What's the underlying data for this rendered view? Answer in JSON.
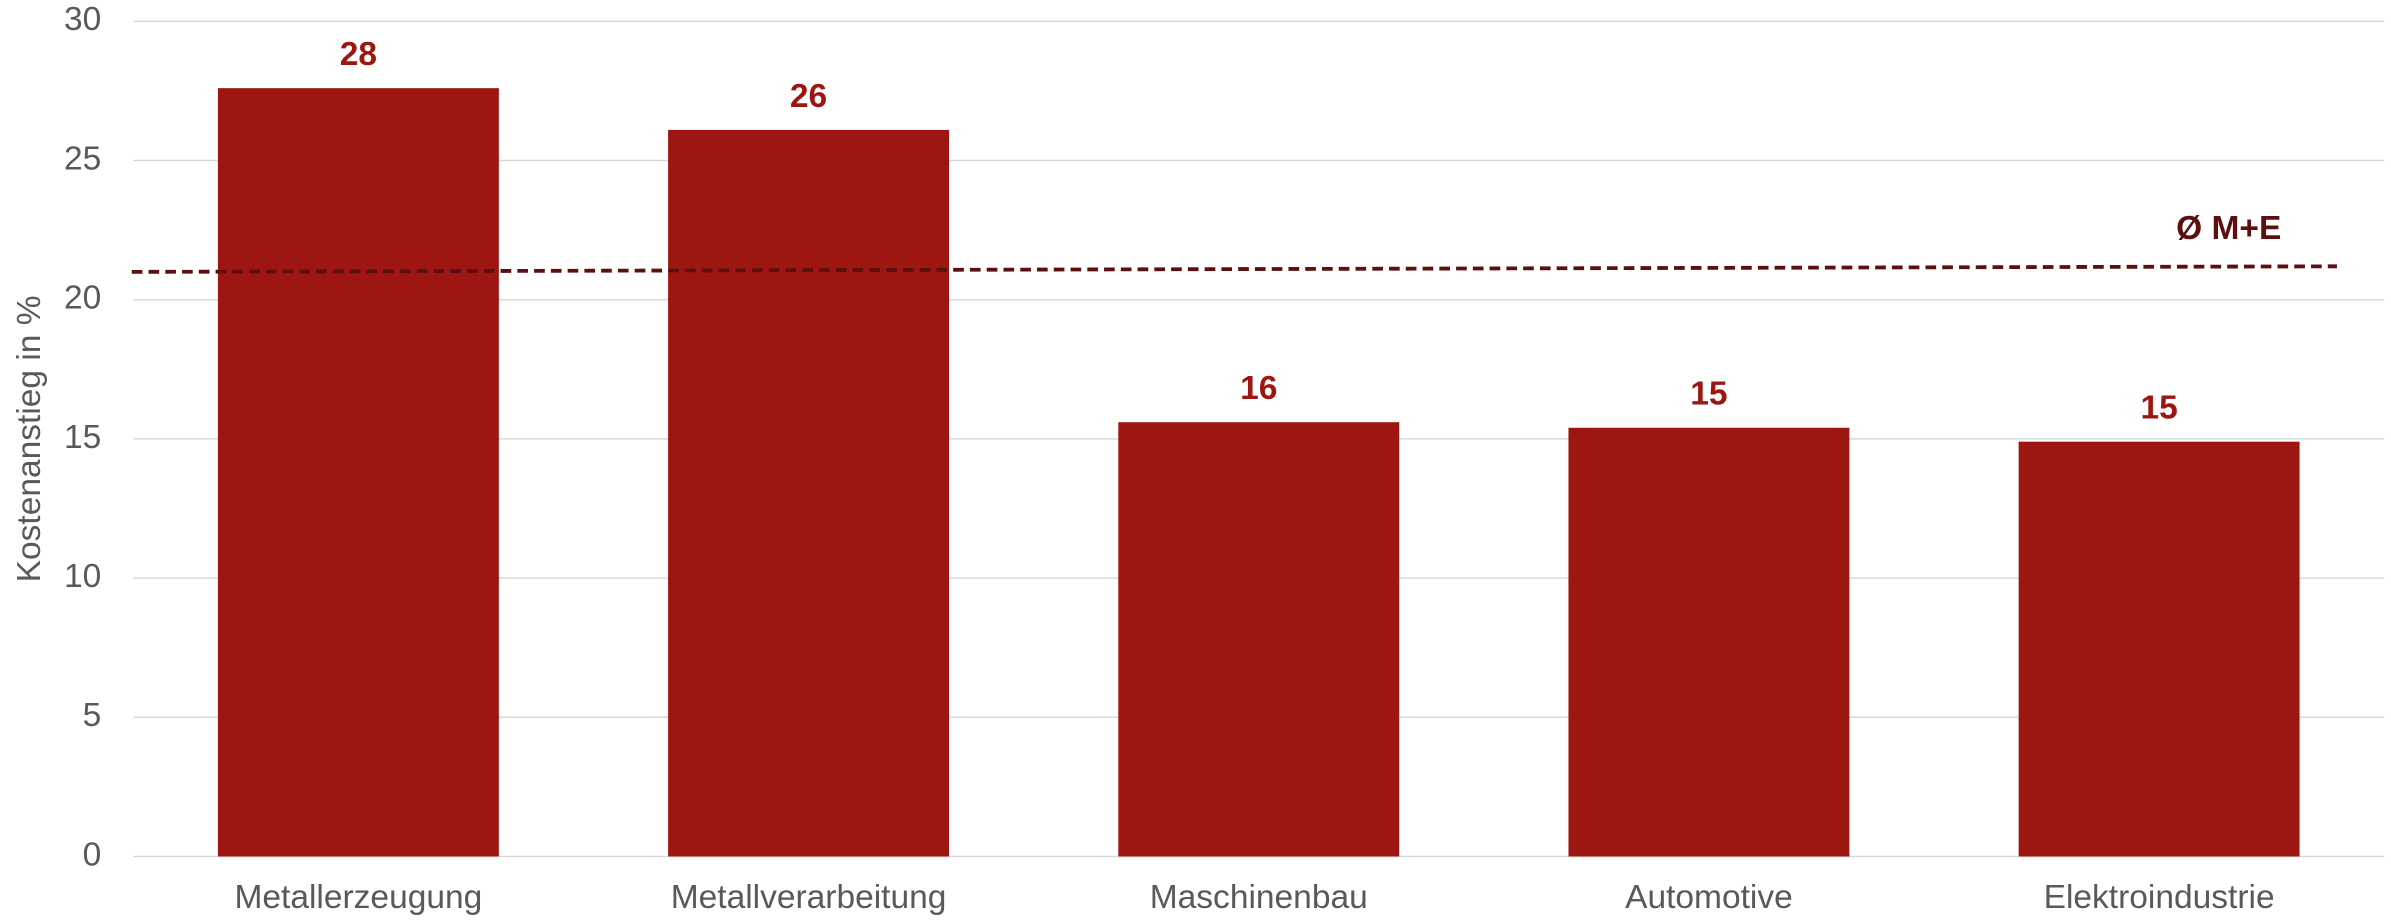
{
  "chart_data": {
    "type": "bar",
    "y_axis_label": "Kostenanstieg in %",
    "categories": [
      "Metallerzeugung",
      "Metallverarbeitung",
      "Maschinenbau",
      "Automotive",
      "Elektroindustrie"
    ],
    "values": [
      27.6,
      26.1,
      15.6,
      15.4,
      14.9
    ],
    "value_labels": [
      "28",
      "26",
      "16",
      "15",
      "15"
    ],
    "color": "#9e1611",
    "ylim": [
      0,
      30
    ],
    "yticks": [
      0,
      5,
      10,
      15,
      20,
      25,
      30
    ],
    "grid": true,
    "reference_line": {
      "label": "Ø M+E",
      "values": [
        21.0,
        21.2
      ],
      "color": "#5c0f0f"
    }
  }
}
